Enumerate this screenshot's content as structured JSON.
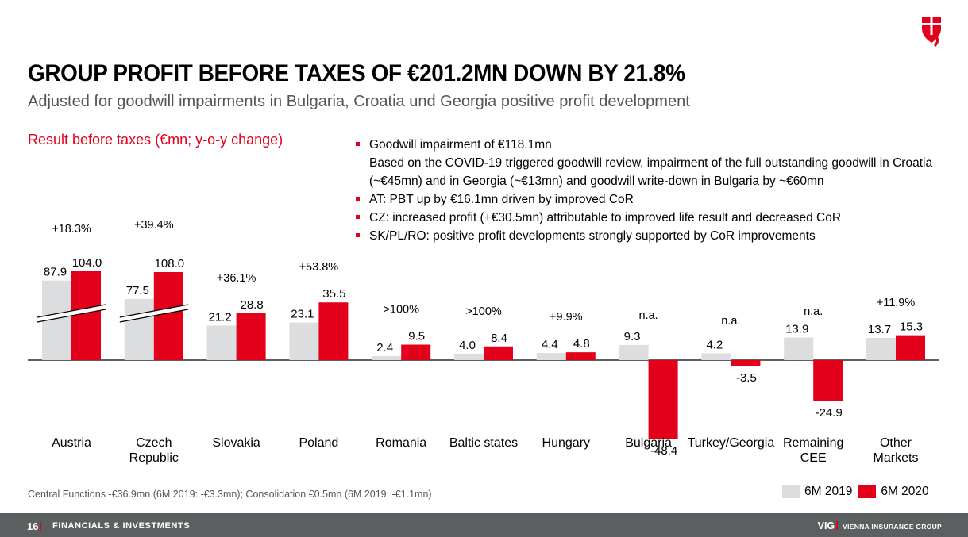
{
  "header": {
    "title": "GROUP PROFIT BEFORE TAXES OF €201.2MN DOWN BY 21.8%",
    "subtitle": "Adjusted for goodwill impairments in Bulgaria, Croatia und Georgia positive profit development",
    "chart_label": "Result before taxes (€mn; y-o-y change)"
  },
  "bullets": [
    "Goodwill impairment of €118.1mn",
    "Based on the COVID-19 triggered goodwill review, impairment of the full outstanding goodwill in Croatia (~€45mn) and in Georgia (~€13mn) and goodwill write-down in Bulgaria by ~€60mn",
    "AT: PBT up by €16.1mn driven by improved CoR",
    "CZ: increased profit (+€30.5mn) attributable to improved life result and decreased CoR",
    "SK/PL/RO: positive profit developments strongly supported by CoR improvements"
  ],
  "colors": {
    "series_2019": "#dcddde",
    "series_2020": "#e2001a",
    "accent": "#e2001a",
    "footer_bg": "#5b5f60"
  },
  "chart_data": {
    "type": "bar",
    "categories": [
      "Austria",
      "Czech Republic",
      "Slovakia",
      "Poland",
      "Romania",
      "Baltic states",
      "Hungary",
      "Bulgaria",
      "Turkey/Georgia",
      "Remaining CEE",
      "Other Markets"
    ],
    "category_lines": [
      [
        "Austria"
      ],
      [
        "Czech",
        "Republic"
      ],
      [
        "Slovakia"
      ],
      [
        "Poland"
      ],
      [
        "Romania"
      ],
      [
        "Baltic states"
      ],
      [
        "Hungary"
      ],
      [
        "Bulgaria"
      ],
      [
        "Turkey/Georgia"
      ],
      [
        "Remaining",
        "CEE"
      ],
      [
        "Other",
        "Markets"
      ]
    ],
    "series": [
      {
        "name": "6M 2019",
        "values": [
          87.9,
          77.5,
          21.2,
          23.1,
          2.4,
          4.0,
          4.4,
          9.3,
          4.2,
          13.9,
          13.7
        ]
      },
      {
        "name": "6M 2020",
        "values": [
          104.0,
          108.0,
          28.8,
          35.5,
          9.5,
          8.4,
          4.8,
          -48.4,
          -3.5,
          -24.9,
          15.3
        ]
      }
    ],
    "value_labels_2019": [
      "87.9",
      "77.5",
      "21.2",
      "23.1",
      "2.4",
      "4.0",
      "4.4",
      "9.3",
      "4.2",
      "13.9",
      "13.7"
    ],
    "value_labels_2020": [
      "104.0",
      "108.0",
      "28.8",
      "35.5",
      "9.5",
      "8.4",
      "4.8",
      "-48.4",
      "-3.5",
      "-24.9",
      "15.3"
    ],
    "yoy_change": [
      "+18.3%",
      "+39.4%",
      "+36.1%",
      "+53.8%",
      ">100%",
      ">100%",
      "+9.9%",
      "n.a.",
      "n.a.",
      "n.a.",
      "+11.9%"
    ],
    "axis_breaks": [
      "Austria",
      "Czech Republic"
    ],
    "legend_position": "bottom-right",
    "grid": false
  },
  "footnote": "Central Functions -€36.9mn (6M 2019: -€3.3mn); Consolidation €0.5mn (6M 2019: -€1.1mn)",
  "footer": {
    "page_number": "16",
    "section": "FINANCIALS & INVESTMENTS",
    "brand": "VIG",
    "brand_sub": "VIENNA INSURANCE GROUP"
  },
  "icons": {
    "logo": "vig-shield-logo-icon"
  }
}
